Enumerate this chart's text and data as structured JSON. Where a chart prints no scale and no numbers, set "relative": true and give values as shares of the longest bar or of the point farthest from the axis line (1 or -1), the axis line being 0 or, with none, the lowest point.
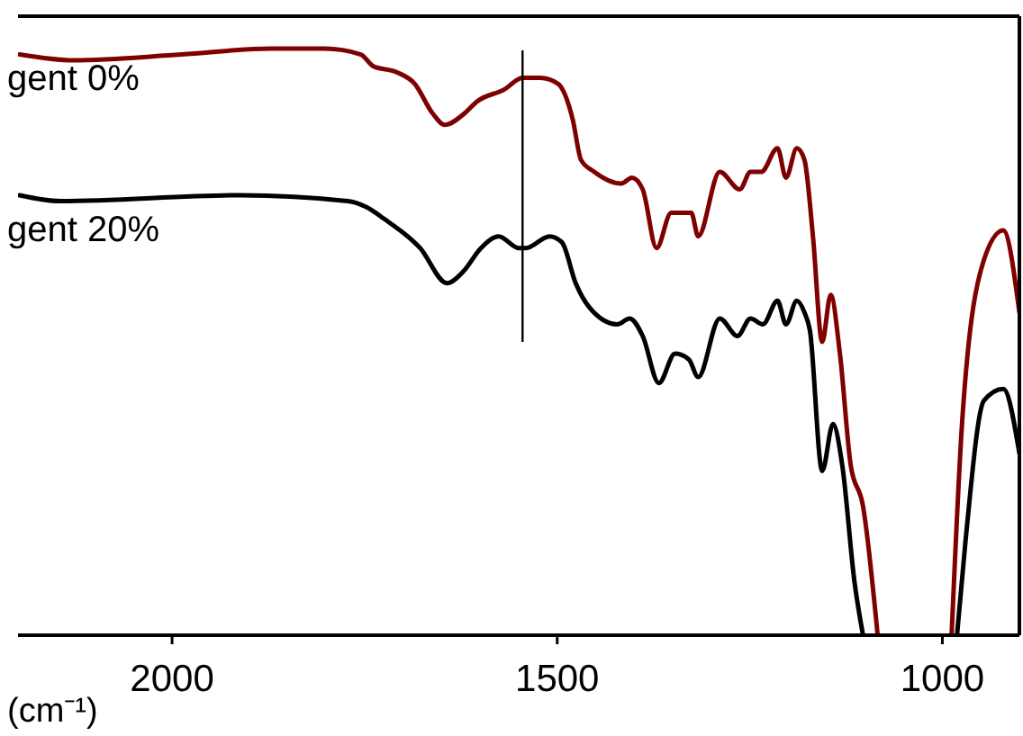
{
  "chart_data": {
    "type": "line",
    "relative": true,
    "xlabel": "(cm⁻¹)",
    "xlim": [
      2200,
      900
    ],
    "xticks": [
      2000,
      1500,
      1000
    ],
    "tick_labels": "x",
    "grid": false,
    "legend": false,
    "marker": "none",
    "line_style": "solid",
    "ref_lines": [
      {
        "axis": "x",
        "value": 1545,
        "color": "#000000"
      }
    ],
    "series": [
      {
        "name": "gent 0%",
        "color": "#7f0000",
        "x": [
          2198,
          2128,
          1988,
          1872,
          1802,
          1755,
          1739,
          1709,
          1685,
          1662,
          1646,
          1620,
          1604,
          1569,
          1545,
          1522,
          1499,
          1480,
          1469,
          1452,
          1417,
          1403,
          1389,
          1371,
          1352,
          1336,
          1326,
          1317,
          1289,
          1263,
          1249,
          1235,
          1214,
          1203,
          1189,
          1179,
          1168,
          1156,
          1145,
          1133,
          1119,
          1103,
          1084,
          1040,
          988,
          974,
          946,
          921,
          900
        ],
        "values": [
          0.99,
          0.98,
          0.99,
          1,
          1,
          0.99,
          0.97,
          0.96,
          0.94,
          0.89,
          0.87,
          0.89,
          0.91,
          0.93,
          0.95,
          0.95,
          0.94,
          0.88,
          0.81,
          0.79,
          0.77,
          0.78,
          0.76,
          0.66,
          0.72,
          0.72,
          0.72,
          0.68,
          0.79,
          0.76,
          0.79,
          0.79,
          0.83,
          0.78,
          0.83,
          0.81,
          0.68,
          0.5,
          0.58,
          0.48,
          0.29,
          0.22,
          0,
          null,
          0,
          0.37,
          0.64,
          0.69,
          0.55
        ]
      },
      {
        "name": "gent 20%",
        "color": "#000000",
        "x": [
          2198,
          2145,
          1911,
          1772,
          1748,
          1725,
          1678,
          1643,
          1622,
          1599,
          1576,
          1550,
          1541,
          1510,
          1494,
          1476,
          1459,
          1422,
          1406,
          1389,
          1368,
          1347,
          1329,
          1317,
          1289,
          1266,
          1249,
          1233,
          1214,
          1203,
          1189,
          1179,
          1172,
          1156,
          1142,
          1130,
          1114,
          1103,
          1040,
          981,
          970,
          946,
          921,
          900
        ],
        "values": [
          0.75,
          0.74,
          0.75,
          0.74,
          0.73,
          0.71,
          0.66,
          0.6,
          0.62,
          0.66,
          0.68,
          0.66,
          0.66,
          0.68,
          0.67,
          0.6,
          0.56,
          0.53,
          0.54,
          0.51,
          0.43,
          0.48,
          0.47,
          0.44,
          0.54,
          0.51,
          0.54,
          0.53,
          0.57,
          0.53,
          0.57,
          0.55,
          0.52,
          0.28,
          0.36,
          0.29,
          0.09,
          0,
          null,
          0,
          0.16,
          0.4,
          0.42,
          0.31
        ]
      }
    ]
  }
}
